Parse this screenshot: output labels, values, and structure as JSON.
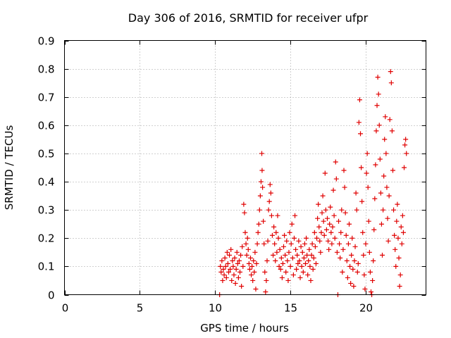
{
  "chart_data": {
    "type": "scatter",
    "title": "Day 306 of 2016, SRMTID for receiver ufpr",
    "xlabel": "GPS time / hours",
    "ylabel": "SRMTID / TECUs",
    "xlim": [
      0,
      24
    ],
    "ylim": [
      0,
      0.9
    ],
    "xticks": [
      0,
      5,
      10,
      15,
      20
    ],
    "yticks": [
      0,
      0.1,
      0.2,
      0.3,
      0.4,
      0.5,
      0.6,
      0.7,
      0.8,
      0.9
    ],
    "xtick_labels": [
      "0",
      "5",
      "10",
      "15",
      "20"
    ],
    "ytick_labels": [
      "0",
      "0.1",
      "0.2",
      "0.3",
      "0.4",
      "0.5",
      "0.6",
      "0.7",
      "0.8",
      "0.9"
    ],
    "grid": true,
    "marker": "+",
    "color": "#e00000",
    "series": [
      {
        "name": "SRMTID",
        "points": [
          [
            10.3,
            0.0
          ],
          [
            10.35,
            0.1
          ],
          [
            10.4,
            0.08
          ],
          [
            10.45,
            0.12
          ],
          [
            10.5,
            0.05
          ],
          [
            10.55,
            0.09
          ],
          [
            10.6,
            0.07
          ],
          [
            10.65,
            0.13
          ],
          [
            10.7,
            0.1
          ],
          [
            10.75,
            0.06
          ],
          [
            10.8,
            0.15
          ],
          [
            10.85,
            0.11
          ],
          [
            10.9,
            0.08
          ],
          [
            10.95,
            0.14
          ],
          [
            11.0,
            0.09
          ],
          [
            11.05,
            0.16
          ],
          [
            11.1,
            0.05
          ],
          [
            11.15,
            0.12
          ],
          [
            11.2,
            0.1
          ],
          [
            11.25,
            0.07
          ],
          [
            11.3,
            0.13
          ],
          [
            11.35,
            0.04
          ],
          [
            11.4,
            0.09
          ],
          [
            11.45,
            0.15
          ],
          [
            11.5,
            0.11
          ],
          [
            11.55,
            0.06
          ],
          [
            11.6,
            0.12
          ],
          [
            11.65,
            0.08
          ],
          [
            11.7,
            0.14
          ],
          [
            11.75,
            0.03
          ],
          [
            11.8,
            0.17
          ],
          [
            11.85,
            0.1
          ],
          [
            11.9,
            0.32
          ],
          [
            11.95,
            0.29
          ],
          [
            12.0,
            0.22
          ],
          [
            12.05,
            0.18
          ],
          [
            12.1,
            0.14
          ],
          [
            12.15,
            0.2
          ],
          [
            12.2,
            0.16
          ],
          [
            12.25,
            0.11
          ],
          [
            12.3,
            0.09
          ],
          [
            12.35,
            0.13
          ],
          [
            12.4,
            0.07
          ],
          [
            12.45,
            0.1
          ],
          [
            12.5,
            0.05
          ],
          [
            12.55,
            0.12
          ],
          [
            12.6,
            0.08
          ],
          [
            12.65,
            0.15
          ],
          [
            12.7,
            0.02
          ],
          [
            12.75,
            0.11
          ],
          [
            12.8,
            0.18
          ],
          [
            12.85,
            0.22
          ],
          [
            12.9,
            0.25
          ],
          [
            12.95,
            0.3
          ],
          [
            13.0,
            0.35
          ],
          [
            13.05,
            0.4
          ],
          [
            13.1,
            0.5
          ],
          [
            13.12,
            0.44
          ],
          [
            13.15,
            0.38
          ],
          [
            13.2,
            0.26
          ],
          [
            13.25,
            0.18
          ],
          [
            13.3,
            0.08
          ],
          [
            13.35,
            0.01
          ],
          [
            13.4,
            0.05
          ],
          [
            13.45,
            0.12
          ],
          [
            13.5,
            0.19
          ],
          [
            13.55,
            0.3
          ],
          [
            13.6,
            0.33
          ],
          [
            13.65,
            0.39
          ],
          [
            13.7,
            0.36
          ],
          [
            13.75,
            0.28
          ],
          [
            13.8,
            0.21
          ],
          [
            13.85,
            0.14
          ],
          [
            13.9,
            0.24
          ],
          [
            13.95,
            0.18
          ],
          [
            14.0,
            0.12
          ],
          [
            14.05,
            0.22
          ],
          [
            14.1,
            0.15
          ],
          [
            14.15,
            0.28
          ],
          [
            14.2,
            0.2
          ],
          [
            14.25,
            0.1
          ],
          [
            14.3,
            0.16
          ],
          [
            14.35,
            0.09
          ],
          [
            14.4,
            0.13
          ],
          [
            14.45,
            0.06
          ],
          [
            14.5,
            0.11
          ],
          [
            14.55,
            0.17
          ],
          [
            14.6,
            0.21
          ],
          [
            14.65,
            0.14
          ],
          [
            14.7,
            0.08
          ],
          [
            14.75,
            0.19
          ],
          [
            14.8,
            0.12
          ],
          [
            14.85,
            0.05
          ],
          [
            14.9,
            0.15
          ],
          [
            14.95,
            0.22
          ],
          [
            15.0,
            0.1
          ],
          [
            15.05,
            0.18
          ],
          [
            15.1,
            0.25
          ],
          [
            15.15,
            0.13
          ],
          [
            15.2,
            0.07
          ],
          [
            15.25,
            0.2
          ],
          [
            15.3,
            0.28
          ],
          [
            15.35,
            0.16
          ],
          [
            15.4,
            0.09
          ],
          [
            15.45,
            0.14
          ],
          [
            15.5,
            0.11
          ],
          [
            15.55,
            0.19
          ],
          [
            15.6,
            0.12
          ],
          [
            15.65,
            0.06
          ],
          [
            15.7,
            0.17
          ],
          [
            15.75,
            0.1
          ],
          [
            15.8,
            0.15
          ],
          [
            15.85,
            0.08
          ],
          [
            15.9,
            0.13
          ],
          [
            15.95,
            0.18
          ],
          [
            16.0,
            0.11
          ],
          [
            16.05,
            0.2
          ],
          [
            16.1,
            0.14
          ],
          [
            16.15,
            0.07
          ],
          [
            16.2,
            0.12
          ],
          [
            16.25,
            0.16
          ],
          [
            16.3,
            0.1
          ],
          [
            16.35,
            0.05
          ],
          [
            16.4,
            0.14
          ],
          [
            16.45,
            0.18
          ],
          [
            16.5,
            0.09
          ],
          [
            16.55,
            0.13
          ],
          [
            16.6,
            0.22
          ],
          [
            16.65,
            0.17
          ],
          [
            16.7,
            0.11
          ],
          [
            16.75,
            0.2
          ],
          [
            16.8,
            0.27
          ],
          [
            16.85,
            0.32
          ],
          [
            16.9,
            0.24
          ],
          [
            16.95,
            0.19
          ],
          [
            17.0,
            0.15
          ],
          [
            17.05,
            0.22
          ],
          [
            17.1,
            0.29
          ],
          [
            17.15,
            0.35
          ],
          [
            17.2,
            0.26
          ],
          [
            17.25,
            0.21
          ],
          [
            17.3,
            0.43
          ],
          [
            17.35,
            0.3
          ],
          [
            17.4,
            0.23
          ],
          [
            17.45,
            0.27
          ],
          [
            17.5,
            0.19
          ],
          [
            17.55,
            0.16
          ],
          [
            17.6,
            0.25
          ],
          [
            17.65,
            0.31
          ],
          [
            17.7,
            0.22
          ],
          [
            17.75,
            0.18
          ],
          [
            17.8,
            0.24
          ],
          [
            17.85,
            0.37
          ],
          [
            17.9,
            0.28
          ],
          [
            17.95,
            0.2
          ],
          [
            18.0,
            0.47
          ],
          [
            18.05,
            0.41
          ],
          [
            18.1,
            0.15
          ],
          [
            18.15,
            0.0
          ],
          [
            18.2,
            0.26
          ],
          [
            18.25,
            0.18
          ],
          [
            18.3,
            0.13
          ],
          [
            18.35,
            0.22
          ],
          [
            18.4,
            0.3
          ],
          [
            18.45,
            0.08
          ],
          [
            18.5,
            0.16
          ],
          [
            18.55,
            0.44
          ],
          [
            18.6,
            0.38
          ],
          [
            18.65,
            0.29
          ],
          [
            18.7,
            0.21
          ],
          [
            18.75,
            0.12
          ],
          [
            18.8,
            0.06
          ],
          [
            18.85,
            0.18
          ],
          [
            18.9,
            0.25
          ],
          [
            18.95,
            0.1
          ],
          [
            19.0,
            0.04
          ],
          [
            19.05,
            0.14
          ],
          [
            19.1,
            0.2
          ],
          [
            19.15,
            0.09
          ],
          [
            19.2,
            0.03
          ],
          [
            19.25,
            0.12
          ],
          [
            19.3,
            0.17
          ],
          [
            19.35,
            0.36
          ],
          [
            19.4,
            0.3
          ],
          [
            19.45,
            0.08
          ],
          [
            19.5,
            0.11
          ],
          [
            19.55,
            0.61
          ],
          [
            19.6,
            0.69
          ],
          [
            19.65,
            0.57
          ],
          [
            19.7,
            0.45
          ],
          [
            19.75,
            0.33
          ],
          [
            19.8,
            0.22
          ],
          [
            19.85,
            0.14
          ],
          [
            19.9,
            0.07
          ],
          [
            19.95,
            0.02
          ],
          [
            20.0,
            0.18
          ],
          [
            20.05,
            0.43
          ],
          [
            20.1,
            0.5
          ],
          [
            20.15,
            0.38
          ],
          [
            20.2,
            0.26
          ],
          [
            20.25,
            0.15
          ],
          [
            20.3,
            0.08
          ],
          [
            20.35,
            0.01
          ],
          [
            20.4,
            0.0
          ],
          [
            20.45,
            0.05
          ],
          [
            20.5,
            0.12
          ],
          [
            20.55,
            0.23
          ],
          [
            20.6,
            0.34
          ],
          [
            20.65,
            0.46
          ],
          [
            20.7,
            0.58
          ],
          [
            20.75,
            0.67
          ],
          [
            20.8,
            0.77
          ],
          [
            20.85,
            0.71
          ],
          [
            20.9,
            0.6
          ],
          [
            20.95,
            0.48
          ],
          [
            21.0,
            0.36
          ],
          [
            21.05,
            0.25
          ],
          [
            21.1,
            0.14
          ],
          [
            21.15,
            0.3
          ],
          [
            21.2,
            0.42
          ],
          [
            21.25,
            0.55
          ],
          [
            21.3,
            0.63
          ],
          [
            21.35,
            0.5
          ],
          [
            21.4,
            0.38
          ],
          [
            21.45,
            0.27
          ],
          [
            21.5,
            0.19
          ],
          [
            21.55,
            0.35
          ],
          [
            21.6,
            0.62
          ],
          [
            21.65,
            0.79
          ],
          [
            21.7,
            0.75
          ],
          [
            21.75,
            0.58
          ],
          [
            21.8,
            0.44
          ],
          [
            21.85,
            0.3
          ],
          [
            21.9,
            0.21
          ],
          [
            21.95,
            0.16
          ],
          [
            22.0,
            0.1
          ],
          [
            22.05,
            0.26
          ],
          [
            22.1,
            0.32
          ],
          [
            22.15,
            0.2
          ],
          [
            22.2,
            0.13
          ],
          [
            22.25,
            0.03
          ],
          [
            22.3,
            0.07
          ],
          [
            22.35,
            0.24
          ],
          [
            22.4,
            0.18
          ],
          [
            22.45,
            0.28
          ],
          [
            22.5,
            0.22
          ],
          [
            22.55,
            0.45
          ],
          [
            22.6,
            0.53
          ],
          [
            22.65,
            0.55
          ],
          [
            22.7,
            0.5
          ]
        ]
      }
    ]
  }
}
